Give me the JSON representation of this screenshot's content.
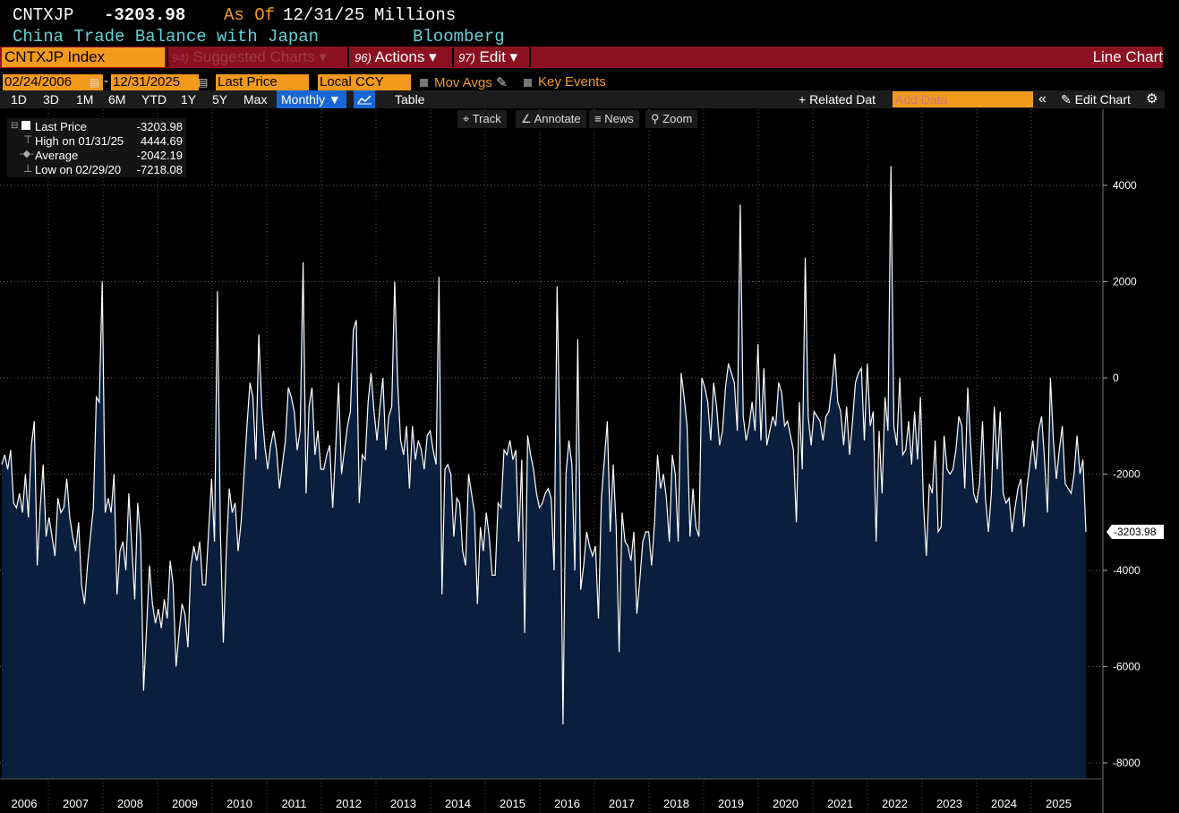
{
  "header": {
    "ticker": "CNTXJP",
    "price": "-3203.98",
    "as_of_label": "As Of",
    "as_of_date": "12/31/25",
    "units": "Millions",
    "description": "China Trade Balance with Japan",
    "source": "Bloomberg"
  },
  "menubar": {
    "security": "CNTXJP Index",
    "suggested_num": "94)",
    "suggested": "Suggested Charts ▾",
    "actions_num": "96)",
    "actions": "Actions ▾",
    "edit_num": "97)",
    "edit": "Edit ▾",
    "chart_type": "Line Chart"
  },
  "controls": {
    "start_date": "02/24/2006",
    "dash": "-",
    "end_date": "12/31/2025",
    "field": "Last Price",
    "currency": "Local CCY",
    "mov_avgs": "Mov Avgs",
    "key_events": "Key Events"
  },
  "toolbar": {
    "ranges": [
      "1D",
      "3D",
      "1M",
      "6M",
      "YTD",
      "1Y",
      "5Y",
      "Max"
    ],
    "frequency": "Monthly ▼",
    "table": "Table",
    "related": "+ Related Dat",
    "add_data_placeholder": "Add Data",
    "collapse": "«",
    "edit_chart": "Edit Chart",
    "settings_icon": "gear-icon"
  },
  "chart_tools": {
    "track": "Track",
    "annotate": "Annotate",
    "news": "News",
    "zoom": "Zoom"
  },
  "legend": {
    "last_label": "Last Price",
    "last_value": "-3203.98",
    "high_label": "High on 01/31/25",
    "high_value": "4444.69",
    "avg_label": "Average",
    "avg_value": "-2042.19",
    "low_label": "Low on 02/29/20",
    "low_value": "-7218.08"
  },
  "colors": {
    "background": "#000000",
    "accent_orange": "#f39a1c",
    "title_cyan": "#5fd3d9",
    "menubar_red": "#8b1120",
    "area_fill": "#0a1f3d",
    "line": "#ffffff"
  },
  "chart_data": {
    "type": "area",
    "ylim": [
      -8400,
      5300
    ],
    "yticks": [
      4000,
      2000,
      0,
      -2000,
      -4000,
      -6000,
      -8000
    ],
    "ytick_labels": [
      "4000",
      "2000",
      "0",
      "-2000",
      "-4000",
      "-6000",
      "-8000"
    ],
    "x_labels": [
      "2006",
      "2007",
      "2008",
      "2009",
      "2010",
      "2011",
      "2012",
      "2013",
      "2014",
      "2015",
      "2016",
      "2017",
      "2018",
      "2019",
      "2020",
      "2021",
      "2022",
      "2023",
      "2024",
      "2025"
    ],
    "x_start": "2006-02",
    "last_value_label": "-3203.98",
    "grid": true,
    "values": [
      -1800,
      -1600,
      -1900,
      -1500,
      -2600,
      -2700,
      -2400,
      -2800,
      -2000,
      -2900,
      -1400,
      -900,
      -3900,
      -2700,
      -1800,
      -3300,
      -2900,
      -3300,
      -3700,
      -2500,
      -2800,
      -2700,
      -2100,
      -2900,
      -3300,
      -3600,
      -3000,
      -4300,
      -4700,
      -3900,
      -3300,
      -2700,
      -400,
      -500,
      2000,
      -2800,
      -2500,
      -2800,
      -2000,
      -4500,
      -3600,
      -3400,
      -4000,
      -2400,
      -3500,
      -4600,
      -2600,
      -3300,
      -6500,
      -5200,
      -3900,
      -4700,
      -5100,
      -4800,
      -5200,
      -4600,
      -5000,
      -3800,
      -4300,
      -6000,
      -5300,
      -4700,
      -4900,
      -5600,
      -3900,
      -3500,
      -3800,
      -3400,
      -4300,
      -4300,
      -3200,
      -2100,
      -3400,
      1800,
      -3200,
      -5500,
      -3600,
      -2300,
      -2800,
      -2600,
      -3600,
      -3000,
      -2000,
      -1000,
      -100,
      -400,
      -1700,
      900,
      -600,
      -1400,
      -1900,
      -1400,
      -1100,
      -1500,
      -2300,
      -1800,
      -1300,
      -200,
      -400,
      -700,
      -1500,
      -1100,
      2400,
      -2400,
      -600,
      -200,
      -1600,
      -1100,
      -1900,
      -1900,
      -1600,
      -1400,
      -2700,
      -1500,
      -100,
      -2000,
      -1500,
      -1000,
      -700,
      1000,
      1200,
      -2600,
      -1600,
      -1700,
      -500,
      100,
      -700,
      -1300,
      -600,
      0,
      -1500,
      -800,
      -600,
      2000,
      -100,
      -1300,
      -1600,
      -1000,
      -2300,
      -1000,
      -1700,
      -1300,
      -1500,
      -1900,
      -1200,
      -1100,
      -1500,
      -1800,
      2100,
      -4500,
      -1900,
      -1800,
      -2000,
      -3300,
      -2500,
      -2600,
      -3600,
      -3900,
      -2000,
      -2400,
      -2800,
      -4700,
      -3100,
      -3600,
      -2800,
      -3300,
      -4100,
      -4100,
      -2600,
      -2700,
      -1500,
      -1600,
      -1300,
      -1700,
      -1500,
      -3400,
      -1700,
      -5300,
      -1200,
      -1600,
      -1900,
      -2400,
      -2700,
      -2600,
      -2400,
      -2300,
      -2500,
      -4000,
      1900,
      -1500,
      -7200,
      -2000,
      -1300,
      -1800,
      -4000,
      800,
      -4400,
      -3900,
      -3200,
      -3500,
      -3700,
      -3500,
      -5000,
      -2500,
      -1700,
      -900,
      -3200,
      -1800,
      -3100,
      -5700,
      -2800,
      -3400,
      -3500,
      -3800,
      -3200,
      -4900,
      -4200,
      -3400,
      -3200,
      -3200,
      -3900,
      -3000,
      -1600,
      -2300,
      -2000,
      -2500,
      -3400,
      -1600,
      -2000,
      -3400,
      100,
      -400,
      -1000,
      -3300,
      -2300,
      -3100,
      -3300,
      0,
      -200,
      -500,
      -1300,
      -100,
      -600,
      -1400,
      -1100,
      -200,
      300,
      100,
      -100,
      -1100,
      3600,
      -800,
      -1300,
      -1000,
      -500,
      -1100,
      700,
      -1300,
      200,
      -1400,
      -1100,
      -800,
      -1000,
      -100,
      -300,
      -1000,
      -900,
      -1200,
      -1500,
      -3000,
      -500,
      -1900,
      2500,
      -800,
      -1400,
      -700,
      -800,
      -900,
      -1300,
      -800,
      -700,
      -200,
      500,
      -500,
      -700,
      -1400,
      -600,
      -1600,
      -900,
      -100,
      100,
      200,
      -1300,
      300,
      -1000,
      -700,
      -3400,
      -1100,
      -2400,
      -400,
      -1100,
      4400,
      -1000,
      -1400,
      0,
      -1600,
      -1500,
      -900,
      -1800,
      -700,
      -1700,
      -400,
      -2600,
      -3700,
      -2200,
      -2400,
      -1300,
      -3200,
      -3100,
      -1200,
      -1900,
      -2000,
      -1900,
      -1500,
      -800,
      -1000,
      -2300,
      -200,
      -1400,
      -2400,
      -2600,
      -2200,
      -900,
      -2500,
      -3200,
      -2400,
      -600,
      -1900,
      -700,
      -2400,
      -2600,
      -2500,
      -3200,
      -2700,
      -2300,
      -2100,
      -3100,
      -2300,
      -1800,
      -1300,
      -1900,
      -1100,
      -800,
      -1700,
      -2800,
      0,
      -1300,
      -2100,
      -1500,
      -1000,
      -2200,
      -2300,
      -2400,
      -2000,
      -1200,
      -2000,
      -1700,
      -3200
    ]
  }
}
